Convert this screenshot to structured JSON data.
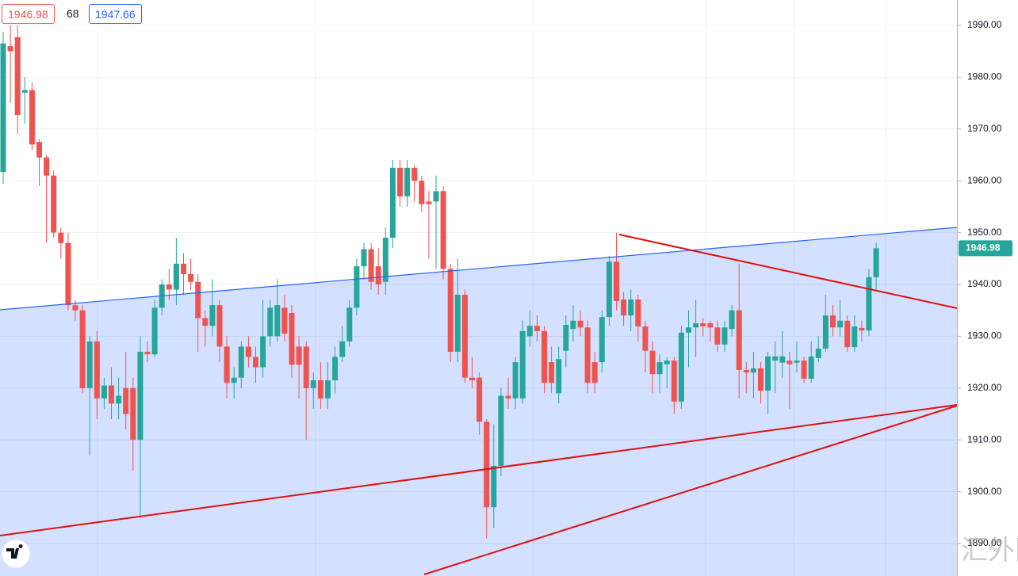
{
  "quote": {
    "bid": 1946.98,
    "spread": 68,
    "ask": 1947.66
  },
  "chart_data": {
    "type": "candlestick",
    "up_color": "#26a69a",
    "down_color": "#ef5350",
    "grid": true,
    "ylim": [
      1883.73,
      1994.89
    ],
    "yticks": [
      {
        "value": 1890,
        "label": "1890.00"
      },
      {
        "value": 1900,
        "label": "1900.00"
      },
      {
        "value": 1910,
        "label": "1910.00"
      },
      {
        "value": 1920,
        "label": "1920.00"
      },
      {
        "value": 1930,
        "label": "1930.00"
      },
      {
        "value": 1940,
        "label": "1940.00"
      },
      {
        "value": 1950,
        "label": "1950.00"
      },
      {
        "value": 1960,
        "label": "1960.00"
      },
      {
        "value": 1970,
        "label": "1970.00"
      },
      {
        "value": 1980,
        "label": "1980.00"
      },
      {
        "value": 1990,
        "label": "1990.00"
      }
    ],
    "last_price": 1946.98,
    "open": [
      1961.7,
      1986,
      1987.7,
      1977,
      1977.5,
      1967.5,
      1964.5,
      1961,
      1950,
      1948,
      1936,
      1935,
      1920,
      1929,
      1918,
      1920.5,
      1917,
      1920,
      1920,
      1910,
      1927,
      1926.5,
      1935.5,
      1940,
      1939,
      1944,
      1942,
      1940.5,
      1933.5,
      1932,
      1936,
      1928,
      1921,
      1922,
      1928,
      1926,
      1924,
      1930,
      1930,
      1935.5,
      1934.5,
      1928,
      1928,
      1920,
      1921.5,
      1918,
      1921.5,
      1926,
      1929,
      1935.5,
      1943.5,
      1946.8,
      1943.5,
      1940.5,
      1949,
      1962.5,
      1957,
      1962.5,
      1960,
      1956,
      1956,
      1958,
      1943,
      1927,
      1938,
      1922,
      1922,
      1913.5,
      1897,
      1905,
      1918.5,
      1918,
      1918,
      1930,
      1932,
      1931,
      1925,
      1919,
      1927.2,
      1931.4,
      1933.0,
      1931.7,
      1925.0,
      1925.0,
      1933.7,
      1944.4,
      1937.1,
      1934.0,
      1937.1,
      1931.9,
      1927.2,
      1922.7,
      1924.6,
      1925.3,
      1917.4,
      1930.7,
      1931.7,
      1932.5,
      1932.5,
      1931.7,
      1928.4,
      1931.4,
      1935.0,
      1923.5,
      1923.0,
      1923.8,
      1919.5,
      1925.3,
      1924.9,
      1925.3,
      1924.9,
      1925.3,
      1921.8,
      1925.8,
      1927.6,
      1934.0,
      1931.7,
      1933.0,
      1927.9,
      1931.6,
      1931.1,
      1941.4
    ],
    "high": [
      1988.8,
      1990,
      1990,
      1980,
      1979,
      1968,
      1965,
      1962,
      1951,
      1950,
      1937,
      1936,
      1930,
      1931,
      1922,
      1924,
      1922,
      1927,
      1922,
      1930,
      1929,
      1937,
      1941,
      1943,
      1949,
      1946,
      1945,
      1942,
      1935,
      1941,
      1937,
      1930,
      1924,
      1929,
      1930,
      1928,
      1937,
      1937,
      1941,
      1938,
      1936,
      1930,
      1929,
      1923,
      1925,
      1925,
      1928,
      1932,
      1937,
      1945,
      1948,
      1948,
      1947,
      1951,
      1964,
      1964,
      1964,
      1963,
      1961,
      1958,
      1961,
      1959,
      1944,
      1945,
      1939,
      1926,
      1923,
      1914,
      1913,
      1920,
      1922,
      1926,
      1933,
      1935,
      1934,
      1932,
      1928,
      1928,
      1934,
      1936,
      1935,
      1933,
      1927,
      1935,
      1945.5,
      1950,
      1938.5,
      1939,
      1938,
      1933,
      1929,
      1926.5,
      1926,
      1926,
      1932,
      1935,
      1937,
      1933.5,
      1933,
      1933,
      1933,
      1936,
      1944,
      1925,
      1927,
      1925,
      1927,
      1929,
      1931,
      1927,
      1929,
      1926,
      1929,
      1930,
      1938,
      1936,
      1937,
      1934,
      1934,
      1933,
      1943,
      1948
    ],
    "low": [
      1959.4,
      1975,
      1969,
      1971,
      1966,
      1959,
      1948,
      1949,
      1945,
      1935,
      1933,
      1919,
      1907,
      1914,
      1916,
      1914,
      1914,
      1912,
      1904,
      1895,
      1925,
      1926,
      1934,
      1937,
      1936,
      1938,
      1939,
      1927,
      1928,
      1930,
      1925,
      1918,
      1918,
      1920,
      1924,
      1921,
      1922,
      1928,
      1929,
      1929,
      1922,
      1918,
      1910,
      1916,
      1916,
      1916,
      1919,
      1925,
      1928,
      1934,
      1941,
      1939,
      1938,
      1938,
      1947,
      1955,
      1955,
      1956,
      1954,
      1945,
      1943,
      1941,
      1925,
      1925,
      1921,
      1920,
      1911,
      1891,
      1893,
      1903,
      1916,
      1916,
      1917,
      1928,
      1929,
      1919,
      1919,
      1917,
      1924,
      1929,
      1930,
      1919,
      1919,
      1923,
      1932,
      1935,
      1932,
      1931,
      1929,
      1923,
      1919,
      1919,
      1920,
      1915,
      1916,
      1924,
      1926,
      1930,
      1929,
      1927,
      1927,
      1930,
      1918,
      1919,
      1918,
      1917,
      1915,
      1919,
      1922,
      1916,
      1923,
      1921,
      1921,
      1925,
      1927,
      1930,
      1930,
      1927,
      1927,
      1929,
      1930,
      1939
    ],
    "close": [
      1986.5,
      1985,
      1972.7,
      1977.5,
      1967,
      1964.5,
      1961,
      1950,
      1948,
      1936,
      1935,
      1920,
      1929,
      1918,
      1920.5,
      1917,
      1918.5,
      1915,
      1910,
      1927,
      1926.5,
      1935.5,
      1940,
      1939,
      1944,
      1942,
      1940.5,
      1933.5,
      1932,
      1936,
      1928,
      1921,
      1922,
      1928,
      1926,
      1924,
      1930,
      1935.5,
      1936,
      1930.5,
      1924.5,
      1924.5,
      1920,
      1921.5,
      1918,
      1921.5,
      1926,
      1929,
      1935.5,
      1943.5,
      1946.8,
      1940.5,
      1940,
      1949,
      1962.5,
      1957,
      1962.5,
      1960,
      1955.5,
      1955.5,
      1958,
      1943,
      1927,
      1938,
      1922,
      1921.5,
      1913.5,
      1897,
      1905,
      1918.5,
      1918,
      1925,
      1931,
      1932,
      1931,
      1921,
      1921,
      1925.6,
      1932.2,
      1933.0,
      1931.7,
      1921.0,
      1921.0,
      1933.7,
      1944.4,
      1936.8,
      1934.0,
      1937.1,
      1931.9,
      1927.2,
      1922.7,
      1925.0,
      1925.3,
      1917.4,
      1930.7,
      1931.7,
      1932.5,
      1931.9,
      1931.7,
      1928.4,
      1931.7,
      1935.0,
      1923.5,
      1923.0,
      1923.8,
      1919.5,
      1926.1,
      1926.1,
      1926.1,
      1924.6,
      1925.3,
      1921.8,
      1926.1,
      1927.6,
      1934.0,
      1931.7,
      1933.0,
      1927.9,
      1931.9,
      1931.1,
      1941.4,
      1946.98
    ]
  }
}
